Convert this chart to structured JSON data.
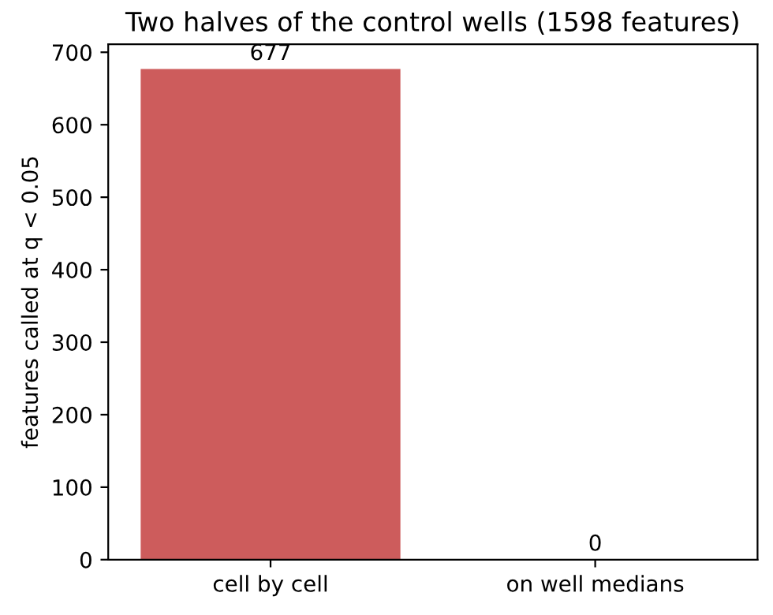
{
  "chart_data": {
    "type": "bar",
    "title": "Two halves of the control wells (1598 features)",
    "ylabel": "features called at q < 0.05",
    "categories": [
      "cell by cell",
      "on well medians"
    ],
    "values": [
      677,
      0
    ],
    "color": "#cd5c5c",
    "ylim": [
      0,
      711
    ],
    "yticks": [
      0,
      100,
      200,
      300,
      400,
      500,
      600,
      700
    ],
    "data_labels": true,
    "grid": false
  }
}
